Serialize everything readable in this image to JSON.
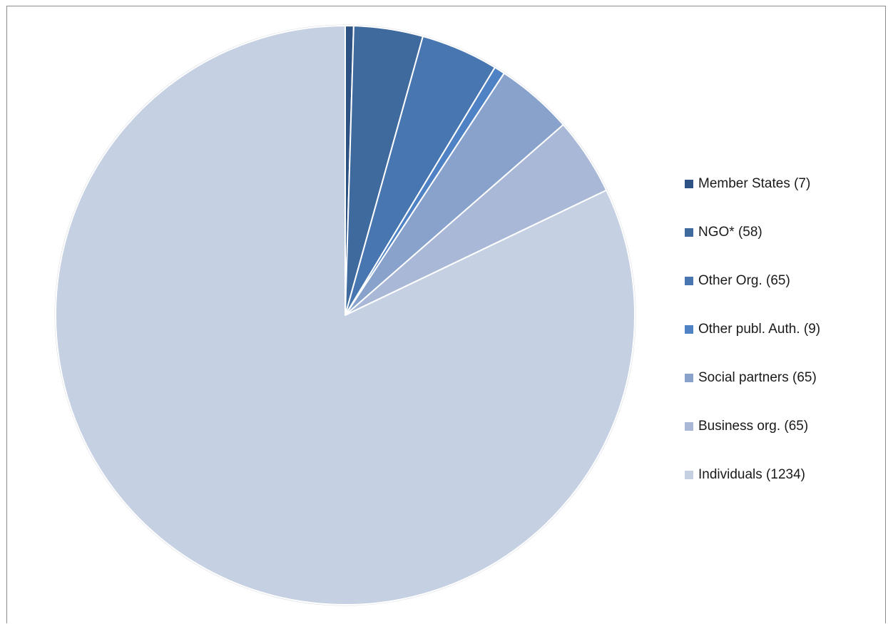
{
  "chart_data": {
    "type": "pie",
    "categories": [
      "Member States (7)",
      "NGO* (58)",
      "Other Org. (65)",
      "Other publ. Auth. (9)",
      "Social partners (65)",
      "Business org. (65)",
      "Individuals (1234)"
    ],
    "values": [
      7,
      58,
      65,
      9,
      65,
      65,
      1234
    ],
    "colors": [
      "#2e5284",
      "#3f6a9e",
      "#4876b0",
      "#4e82c4",
      "#88a2cc",
      "#a8b8d6",
      "#c5d0e3"
    ],
    "start_angle_deg": 0,
    "direction": "clockwise",
    "legend_position": "right",
    "title": ""
  }
}
